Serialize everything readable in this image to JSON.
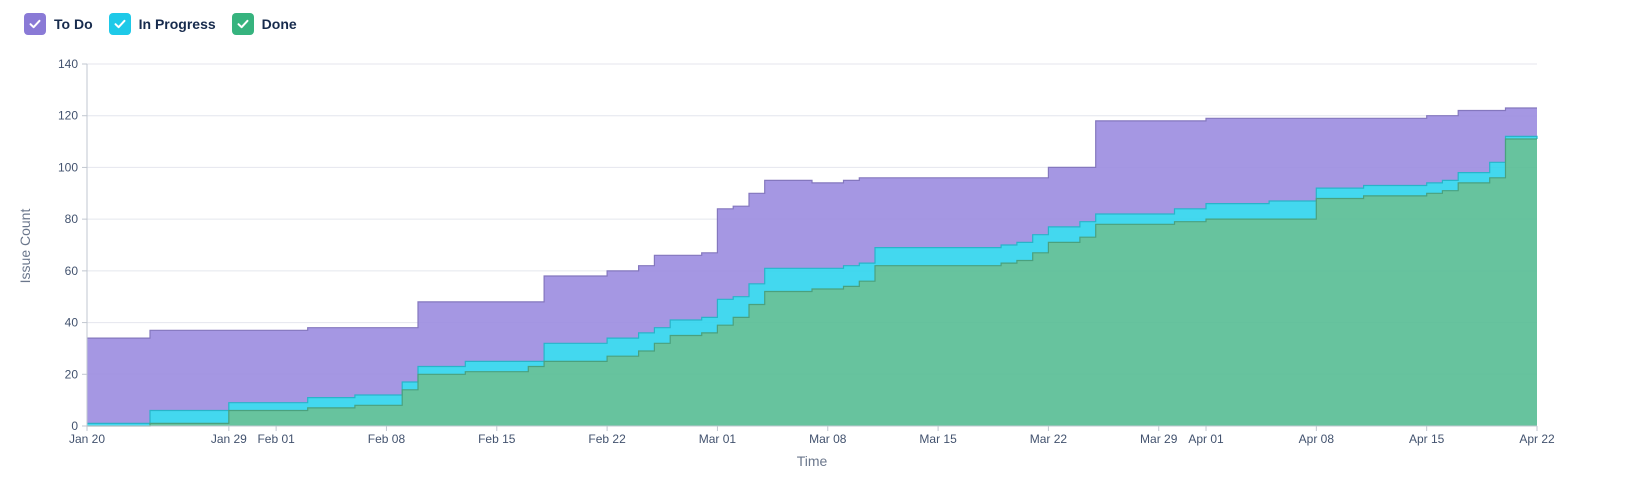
{
  "chart_data": {
    "type": "area",
    "stacked": true,
    "xlabel": "Time",
    "ylabel": "Issue Count",
    "ylim": [
      0,
      140
    ],
    "yticks": [
      0,
      20,
      40,
      60,
      80,
      100,
      120,
      140
    ],
    "xlim": [
      "2022-01-20",
      "2022-04-22"
    ],
    "xticks": [
      {
        "date": "2022-01-20",
        "label": "Jan 20"
      },
      {
        "date": "2022-01-29",
        "label": "Jan 29"
      },
      {
        "date": "2022-02-01",
        "label": "Feb 01"
      },
      {
        "date": "2022-02-08",
        "label": "Feb 08"
      },
      {
        "date": "2022-02-15",
        "label": "Feb 15"
      },
      {
        "date": "2022-02-22",
        "label": "Feb 22"
      },
      {
        "date": "2022-03-01",
        "label": "Mar 01"
      },
      {
        "date": "2022-03-08",
        "label": "Mar 08"
      },
      {
        "date": "2022-03-15",
        "label": "Mar 15"
      },
      {
        "date": "2022-03-22",
        "label": "Mar 22"
      },
      {
        "date": "2022-03-29",
        "label": "Mar 29"
      },
      {
        "date": "2022-04-01",
        "label": "Apr 01"
      },
      {
        "date": "2022-04-08",
        "label": "Apr 08"
      },
      {
        "date": "2022-04-15",
        "label": "Apr 15"
      },
      {
        "date": "2022-04-22",
        "label": "Apr 22"
      }
    ],
    "grid": true,
    "legend_position": "top-left",
    "x": [
      "2022-01-20",
      "2022-01-22",
      "2022-01-24",
      "2022-01-29",
      "2022-02-03",
      "2022-02-06",
      "2022-02-08",
      "2022-02-09",
      "2022-02-10",
      "2022-02-13",
      "2022-02-17",
      "2022-02-18",
      "2022-02-22",
      "2022-02-24",
      "2022-02-25",
      "2022-02-26",
      "2022-02-28",
      "2022-03-01",
      "2022-03-02",
      "2022-03-03",
      "2022-03-04",
      "2022-03-07",
      "2022-03-08",
      "2022-03-09",
      "2022-03-10",
      "2022-03-11",
      "2022-03-14",
      "2022-03-19",
      "2022-03-20",
      "2022-03-21",
      "2022-03-22",
      "2022-03-23",
      "2022-03-24",
      "2022-03-25",
      "2022-03-30",
      "2022-04-01",
      "2022-04-05",
      "2022-04-06",
      "2022-04-08",
      "2022-04-11",
      "2022-04-15",
      "2022-04-16",
      "2022-04-17",
      "2022-04-19",
      "2022-04-20",
      "2022-04-22"
    ],
    "series": [
      {
        "name": "Done",
        "color": "#57bd94",
        "values": [
          0,
          0,
          1,
          6,
          7,
          8,
          8,
          14,
          20,
          21,
          23,
          25,
          27,
          29,
          32,
          35,
          36,
          39,
          42,
          47,
          52,
          53,
          53,
          54,
          56,
          62,
          62,
          63,
          64,
          67,
          71,
          71,
          73,
          78,
          79,
          80,
          80,
          80,
          88,
          89,
          90,
          91,
          94,
          96,
          111,
          111
        ]
      },
      {
        "name": "In Progress",
        "color": "#2fd4ed",
        "values": [
          1,
          1,
          5,
          3,
          4,
          4,
          4,
          3,
          3,
          4,
          2,
          7,
          7,
          7,
          6,
          6,
          6,
          10,
          8,
          8,
          9,
          8,
          8,
          8,
          7,
          7,
          7,
          7,
          7,
          7,
          6,
          6,
          6,
          4,
          5,
          6,
          7,
          7,
          4,
          4,
          4,
          4,
          4,
          6,
          1,
          0
        ]
      },
      {
        "name": "To Do",
        "color": "#9b8ce0",
        "values": [
          33,
          33,
          31,
          28,
          27,
          26,
          26,
          21,
          25,
          23,
          23,
          26,
          26,
          26,
          28,
          25,
          25,
          35,
          35,
          35,
          34,
          33,
          33,
          33,
          33,
          27,
          27,
          26,
          25,
          22,
          23,
          23,
          21,
          36,
          34,
          33,
          32,
          32,
          27,
          26,
          26,
          25,
          24,
          20,
          11,
          12
        ]
      }
    ]
  },
  "legend": [
    {
      "label": "To Do",
      "color": "#8a7ad6"
    },
    {
      "label": "In Progress",
      "color": "#1ec9e8"
    },
    {
      "label": "Done",
      "color": "#36b37e"
    }
  ]
}
